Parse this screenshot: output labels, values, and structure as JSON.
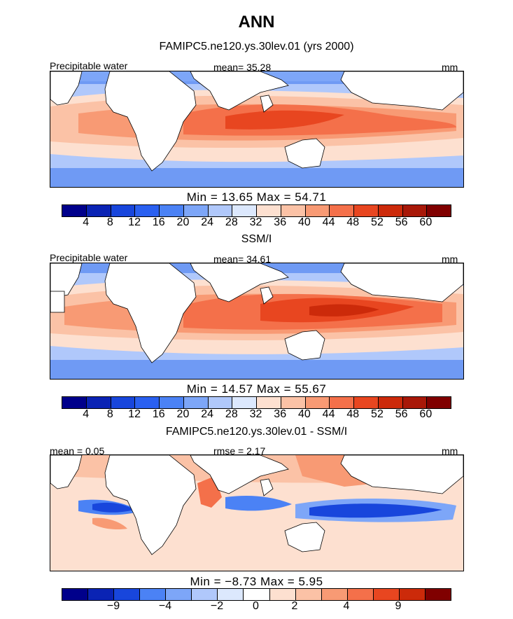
{
  "title": "ANN",
  "panels": [
    {
      "subtitle": "FAMIPC5.ne120.ys.30lev.01 (yrs 2000)",
      "left_label": "Precipitable water",
      "center_label": "mean=  35.28",
      "right_label": "mm",
      "minmax": "Min =  13.65 Max =  54.71",
      "field_min": 13.65,
      "field_max": 54.71,
      "colorbar_ticks": [
        "4",
        "8",
        "12",
        "16",
        "20",
        "24",
        "28",
        "32",
        "36",
        "40",
        "44",
        "48",
        "52",
        "56",
        "60"
      ]
    },
    {
      "subtitle": "SSM/I",
      "left_label": "Precipitable water",
      "center_label": "mean=  34.61",
      "right_label": "mm",
      "minmax": "Min =  14.57 Max =  55.67",
      "field_min": 14.57,
      "field_max": 55.67,
      "colorbar_ticks": [
        "4",
        "8",
        "12",
        "16",
        "20",
        "24",
        "28",
        "32",
        "36",
        "40",
        "44",
        "48",
        "52",
        "56",
        "60"
      ]
    },
    {
      "subtitle": "FAMIPC5.ne120.ys.30lev.01 - SSM/I",
      "left_label": "mean =   0.05",
      "center_label": "rmse =   2.17",
      "right_label": "mm",
      "minmax": "Min =  −8.73 Max =   5.95",
      "field_min": -8.73,
      "field_max": 5.95,
      "colorbar_ticks": [
        "−9",
        "−4",
        "−2",
        "0",
        "2",
        "4",
        "9"
      ]
    }
  ],
  "colors": {
    "absolute_scale": [
      "#00008b",
      "#0a23b4",
      "#1846dc",
      "#2a60f0",
      "#4b82f5",
      "#7da6f8",
      "#b0c8fb",
      "#dce8fd",
      "#fde0d0",
      "#fbc2a6",
      "#f89a74",
      "#f4704a",
      "#e84620",
      "#cc2a0a",
      "#a81808",
      "#800000"
    ],
    "difference_scale": [
      "#00008b",
      "#0a23b4",
      "#1846dc",
      "#4b82f5",
      "#7da6f8",
      "#b0c8fb",
      "#dce8fd",
      "#ffffff",
      "#fde0d0",
      "#fbc2a6",
      "#f89a74",
      "#f4704a",
      "#e84620",
      "#cc2a0a",
      "#800000"
    ],
    "land": "#ffffff",
    "coastline": "#000000"
  }
}
